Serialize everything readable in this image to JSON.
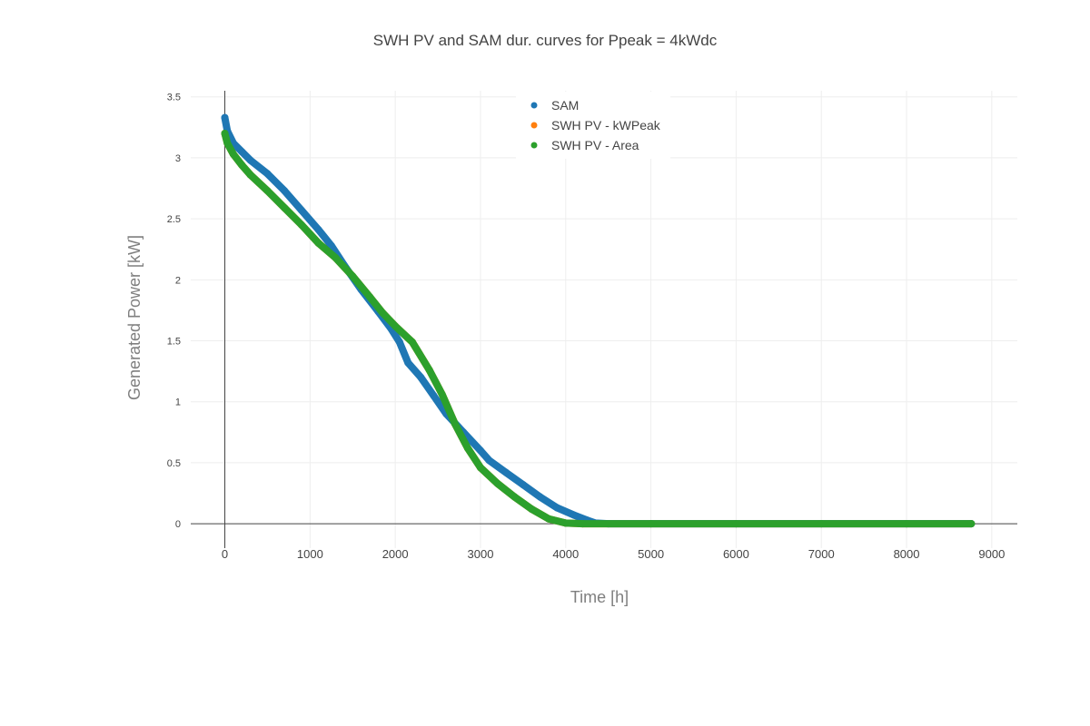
{
  "chart_data": {
    "type": "scatter",
    "title": "SWH PV and SAM dur. curves for Ppeak = 4kWdc",
    "xlabel": "Time [h]",
    "ylabel": "Generated Power [kW]",
    "xlim": [
      -400,
      9300
    ],
    "ylim": [
      -0.2,
      3.55
    ],
    "xticks": [
      0,
      1000,
      2000,
      3000,
      4000,
      5000,
      6000,
      7000,
      8000,
      9000
    ],
    "xtick_labels": [
      "0",
      "1000",
      "2000",
      "3000",
      "4000",
      "5000",
      "6000",
      "7000",
      "8000",
      "9000"
    ],
    "yticks": [
      0,
      0.5,
      1,
      1.5,
      2,
      2.5,
      3,
      3.5
    ],
    "ytick_labels": [
      "0",
      "0.5",
      "1",
      "1.5",
      "2",
      "2.5",
      "3",
      "3.5"
    ],
    "grid": true,
    "legend_position": "top-center",
    "series": [
      {
        "name": "SAM",
        "color": "#1f77b4",
        "x": [
          0,
          30,
          100,
          200,
          300,
          500,
          700,
          900,
          1100,
          1250,
          1400,
          1600,
          1800,
          1950,
          2050,
          2150,
          2300,
          2450,
          2600,
          2800,
          3000,
          3100,
          3300,
          3500,
          3700,
          3900,
          4100,
          4250,
          4350,
          4500,
          5000,
          6000,
          7000,
          8000,
          8760
        ],
        "y": [
          3.33,
          3.22,
          3.12,
          3.05,
          2.98,
          2.87,
          2.73,
          2.57,
          2.41,
          2.28,
          2.12,
          1.92,
          1.74,
          1.6,
          1.49,
          1.32,
          1.2,
          1.05,
          0.9,
          0.75,
          0.6,
          0.52,
          0.42,
          0.32,
          0.22,
          0.13,
          0.07,
          0.03,
          0.005,
          0,
          0,
          0,
          0,
          0,
          0
        ]
      },
      {
        "name": "SWH PV - kWPeak",
        "color": "#ff7f0e",
        "x": [
          0,
          30,
          100,
          200,
          300,
          500,
          700,
          900,
          1100,
          1300,
          1500,
          1700,
          1850,
          2000,
          2200,
          2400,
          2550,
          2700,
          2850,
          3000,
          3200,
          3400,
          3600,
          3800,
          4000,
          4200,
          5000,
          6000,
          7000,
          8000,
          8760
        ],
        "y": [
          3.2,
          3.12,
          3.03,
          2.94,
          2.86,
          2.73,
          2.59,
          2.45,
          2.3,
          2.18,
          2.03,
          1.86,
          1.73,
          1.62,
          1.49,
          1.26,
          1.06,
          0.82,
          0.62,
          0.46,
          0.33,
          0.22,
          0.12,
          0.04,
          0.005,
          0,
          0,
          0,
          0,
          0,
          0
        ]
      },
      {
        "name": "SWH PV - Area",
        "color": "#2ca02c",
        "x": [
          0,
          30,
          100,
          200,
          300,
          500,
          700,
          900,
          1100,
          1300,
          1500,
          1700,
          1850,
          2000,
          2200,
          2400,
          2550,
          2700,
          2850,
          3000,
          3200,
          3400,
          3600,
          3800,
          4000,
          4200,
          5000,
          6000,
          7000,
          8000,
          8760
        ],
        "y": [
          3.2,
          3.12,
          3.03,
          2.94,
          2.86,
          2.73,
          2.59,
          2.45,
          2.3,
          2.18,
          2.03,
          1.86,
          1.73,
          1.62,
          1.49,
          1.26,
          1.06,
          0.82,
          0.62,
          0.46,
          0.33,
          0.22,
          0.12,
          0.04,
          0.005,
          0,
          0,
          0,
          0,
          0,
          0
        ]
      }
    ]
  }
}
